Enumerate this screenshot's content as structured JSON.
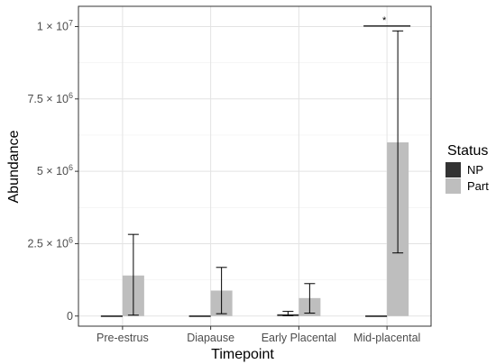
{
  "chart_data": {
    "type": "bar",
    "xlabel": "Timepoint",
    "ylabel": "Abundance",
    "categories": [
      "Pre-estrus",
      "Diapause",
      "Early Placental",
      "Mid-placental"
    ],
    "ylim": [
      -350000,
      10700000
    ],
    "y_ticks": [
      0,
      2500000,
      5000000,
      7500000,
      10000000
    ],
    "y_tick_labels": [
      "0",
      "2.5 × 10",
      "5 × 10",
      "7.5 × 10",
      "1 × 10"
    ],
    "y_tick_exponents": [
      "",
      "6",
      "6",
      "6",
      "7"
    ],
    "grid": true,
    "legend": {
      "title": "Status",
      "placement": "right",
      "entries": [
        "NP",
        "Part"
      ]
    },
    "series": [
      {
        "name": "NP",
        "color": "#333333",
        "values": [
          0,
          0,
          60000,
          0
        ],
        "err_low": [
          null,
          null,
          10000,
          null
        ],
        "err_high": [
          null,
          null,
          160000,
          null
        ]
      },
      {
        "name": "Part",
        "color": "#bebebe",
        "values": [
          1400000,
          880000,
          620000,
          6000000
        ],
        "err_low": [
          30000,
          80000,
          100000,
          2180000
        ],
        "err_high": [
          2820000,
          1680000,
          1120000,
          9850000
        ]
      }
    ],
    "annotations": [
      {
        "text": "*",
        "category": "Mid-placental",
        "y": 10020000
      }
    ]
  }
}
